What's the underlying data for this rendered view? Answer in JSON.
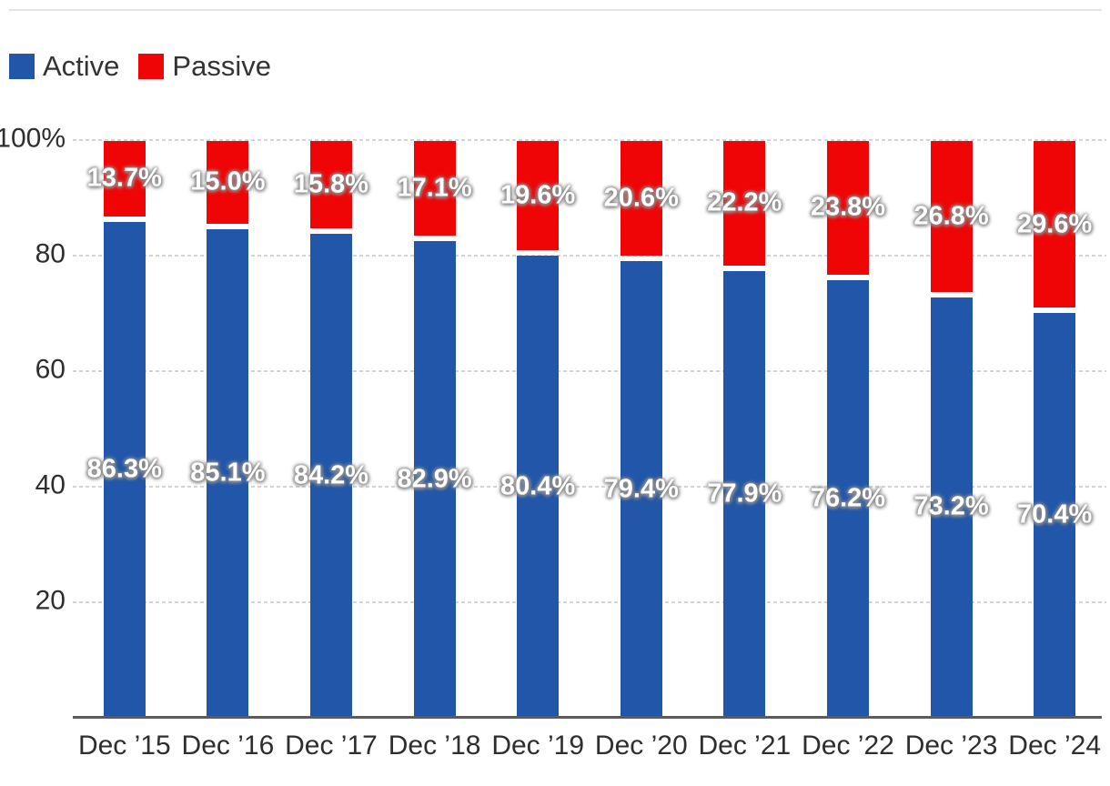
{
  "legend": {
    "items": [
      {
        "label": "Active",
        "color": "#2156a8"
      },
      {
        "label": "Passive",
        "color": "#ef0505"
      }
    ]
  },
  "chart_data": {
    "type": "bar",
    "stacked": true,
    "title": "",
    "categories": [
      "Dec ’15",
      "Dec ’16",
      "Dec ’17",
      "Dec ’18",
      "Dec ’19",
      "Dec ’20",
      "Dec ’21",
      "Dec ’22",
      "Dec ’23",
      "Dec ’24"
    ],
    "series": [
      {
        "name": "Active",
        "color": "#2156a8",
        "values": [
          86.3,
          85.1,
          84.2,
          82.9,
          80.4,
          79.4,
          77.9,
          76.2,
          73.2,
          70.4
        ],
        "labels": [
          "86.3%",
          "85.1%",
          "84.2%",
          "82.9%",
          "80.4%",
          "79.4%",
          "77.9%",
          "76.2%",
          "73.2%",
          "70.4%"
        ]
      },
      {
        "name": "Passive",
        "color": "#ef0505",
        "values": [
          13.7,
          15.0,
          15.8,
          17.1,
          19.6,
          20.6,
          22.2,
          23.8,
          26.8,
          29.6
        ],
        "labels": [
          "13.7%",
          "15.0%",
          "15.8%",
          "17.1%",
          "19.6%",
          "20.6%",
          "22.2%",
          "23.8%",
          "26.8%",
          "29.6%"
        ]
      }
    ],
    "y_axis": {
      "min": 0,
      "max": 100,
      "ticks": [
        {
          "value": 100,
          "label": "100%"
        },
        {
          "value": 80,
          "label": "80"
        },
        {
          "value": 60,
          "label": "60"
        },
        {
          "value": 40,
          "label": "40"
        },
        {
          "value": 20,
          "label": "20"
        }
      ]
    },
    "grid": "horizontal-dashed",
    "legend_position": "top-left",
    "value_label_style": "white-bold-gray-glow"
  }
}
